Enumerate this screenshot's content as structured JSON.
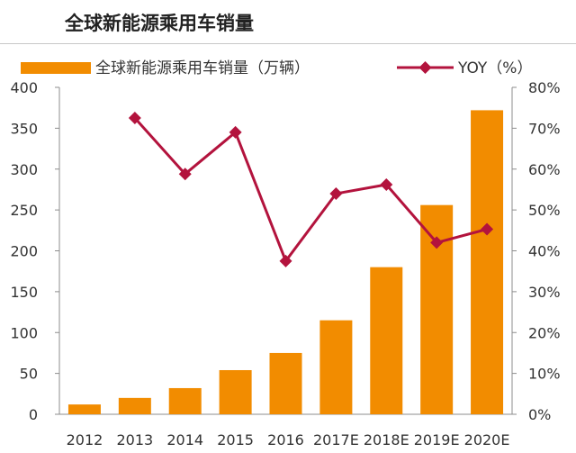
{
  "page": {
    "title": "全球新能源乘用车销量"
  },
  "chart_data": {
    "type": "bar",
    "title": "全球新能源乘用车销量",
    "categories": [
      "2012",
      "2013",
      "2014",
      "2015",
      "2016",
      "2017E",
      "2018E",
      "2019E",
      "2020E"
    ],
    "series": [
      {
        "name": "全球新能源乘用车销量（万辆）",
        "type": "bar",
        "axis": "left",
        "color": "#f28c00",
        "values": [
          12,
          20,
          32,
          54,
          75,
          115,
          180,
          256,
          372
        ]
      },
      {
        "name": "YOY（%）",
        "type": "line",
        "axis": "right",
        "color": "#b3133d",
        "values": [
          null,
          72.5,
          58.8,
          69.0,
          37.5,
          54.0,
          56.2,
          42.0,
          45.3
        ]
      }
    ],
    "y_left": {
      "min": 0,
      "max": 400,
      "ticks": [
        0,
        50,
        100,
        150,
        200,
        250,
        300,
        350,
        400
      ],
      "tick_labels": [
        "0",
        "50",
        "100",
        "150",
        "200",
        "250",
        "300",
        "350",
        "400"
      ]
    },
    "y_right": {
      "min": 0,
      "max": 80,
      "ticks": [
        0,
        10,
        20,
        30,
        40,
        50,
        60,
        70,
        80
      ],
      "tick_labels": [
        "0%",
        "10%",
        "20%",
        "30%",
        "40%",
        "50%",
        "60%",
        "70%",
        "80%"
      ]
    },
    "xlabel": "",
    "ylabel": "",
    "grid": false,
    "legend_position": "top"
  }
}
